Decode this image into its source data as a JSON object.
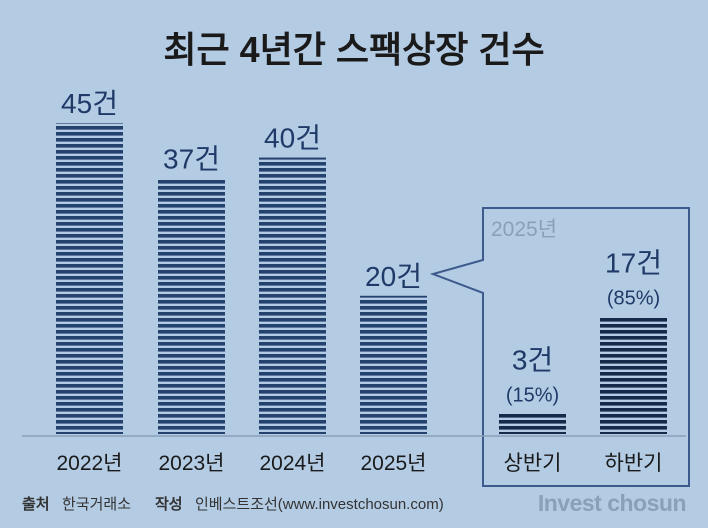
{
  "chart_data": {
    "type": "bar",
    "title": "최근 4년간 스팩상장 건수",
    "unit": "건",
    "categories": [
      "2022년",
      "2023년",
      "2024년",
      "2025년"
    ],
    "values": [
      45,
      37,
      40,
      20
    ],
    "value_labels": [
      "45건",
      "37건",
      "40건",
      "20건"
    ],
    "ylim": [
      0,
      50
    ],
    "breakdown": {
      "title": "2025년",
      "categories": [
        "상반기",
        "하반기"
      ],
      "values": [
        3,
        17
      ],
      "value_labels": [
        "3건",
        "17건"
      ],
      "percent_labels": [
        "(15%)",
        "(85%)"
      ]
    },
    "colors": {
      "bar": "#24426e",
      "bar_dark": "#142a4b",
      "background": "#b3cbe3",
      "callout_border": "#3c5a8c"
    }
  },
  "footer": {
    "source_label": "출처",
    "source_value": "한국거래소",
    "author_label": "작성",
    "author_value": "인베스트조선(www.investchosun.com)",
    "brand": "Invest chosun"
  }
}
